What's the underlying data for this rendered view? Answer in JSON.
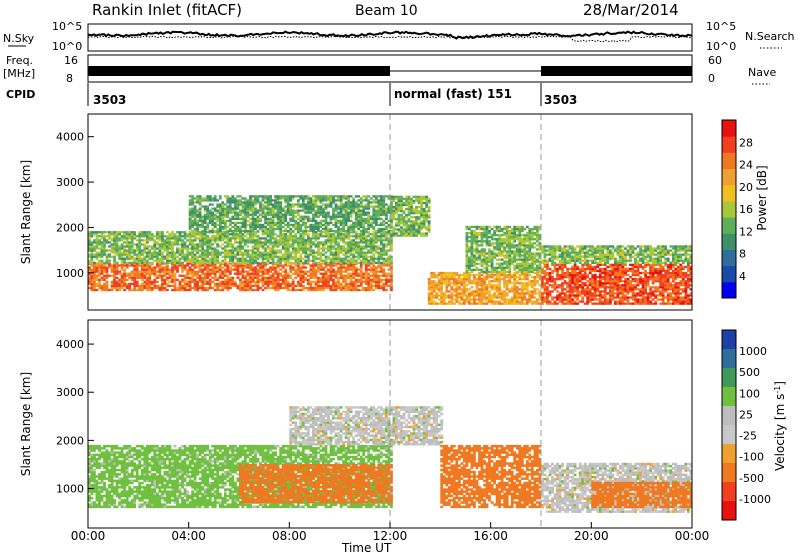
{
  "header": {
    "station": "Rankin Inlet (fitACF)",
    "beam": "Beam 10",
    "date": "28/Mar/2014"
  },
  "noise_panel": {
    "left_label": "N.Sky",
    "left_ticks": [
      "10^5",
      "10^0"
    ],
    "right_label": "N.Search",
    "right_ticks": [
      "10^5",
      "10^0"
    ]
  },
  "freq_panel": {
    "left_label_line1": "Freq.",
    "left_label_line2": "[MHz]",
    "left_ticks": [
      "16",
      "8"
    ],
    "right_label": "Nave",
    "right_ticks": [
      "60",
      "0"
    ]
  },
  "cpid_panel": {
    "label": "CPID",
    "segments": [
      {
        "start_hour": 0,
        "text": "3503"
      },
      {
        "start_hour": 12,
        "text": "normal (fast) 151"
      },
      {
        "start_hour": 18,
        "text": "3503"
      }
    ]
  },
  "colors": {
    "power_scale": [
      "#0000ee",
      "#1a4aa8",
      "#2f6e9a",
      "#3f8f6a",
      "#5fae5a",
      "#a8c83a",
      "#f0c020",
      "#f0a030",
      "#f07820",
      "#f04020",
      "#e81010"
    ],
    "velocity_scale": [
      "#1e3ea8",
      "#2f6e9a",
      "#3f9a5a",
      "#70c040",
      "#bdbdbd",
      "#c8c8c8",
      "#f0a030",
      "#f07820",
      "#f04020",
      "#e81010"
    ]
  },
  "chart_data": [
    {
      "type": "heatmap",
      "quantity": "Power",
      "xlabel": "",
      "ylabel": "Slant Range [km]",
      "xlim": [
        0,
        24
      ],
      "ylim": [
        180,
        4500
      ],
      "y_ticks": [
        "1000",
        "2000",
        "3000",
        "4000"
      ],
      "colorbar_label": "Power [dB]",
      "colorbar_range": [
        0,
        32
      ],
      "colorbar_ticks": [
        "4",
        "8",
        "12",
        "16",
        "20",
        "24",
        "28"
      ],
      "features": [
        {
          "t0": 0,
          "t1": 12,
          "r0": 600,
          "r1": 1200,
          "power": 26
        },
        {
          "t0": 0,
          "t1": 12,
          "r0": 1200,
          "r1": 1900,
          "power": 14
        },
        {
          "t0": 4,
          "t1": 12,
          "r0": 1900,
          "r1": 2700,
          "power": 12
        },
        {
          "t0": 12,
          "t1": 13.5,
          "r0": 1800,
          "r1": 2700,
          "power": 14
        },
        {
          "t0": 13.5,
          "t1": 18,
          "r0": 300,
          "r1": 1000,
          "power": 22
        },
        {
          "t0": 15,
          "t1": 18,
          "r0": 1000,
          "r1": 2000,
          "power": 14
        },
        {
          "t0": 18,
          "t1": 24,
          "r0": 300,
          "r1": 1200,
          "power": 28
        },
        {
          "t0": 18,
          "t1": 24,
          "r0": 1200,
          "r1": 1600,
          "power": 14
        }
      ]
    },
    {
      "type": "heatmap",
      "quantity": "Velocity",
      "xlabel": "Time UT",
      "ylabel": "Slant Range [km]",
      "xlim": [
        0,
        24
      ],
      "ylim": [
        180,
        4500
      ],
      "x_ticks": [
        "00:00",
        "04:00",
        "08:00",
        "12:00",
        "16:00",
        "20:00",
        "00:00"
      ],
      "y_ticks": [
        "1000",
        "2000",
        "3000",
        "4000"
      ],
      "colorbar_label": "Velocity [m s^-1]",
      "colorbar_ticks": [
        "1000",
        "500",
        "100",
        "25",
        "-25",
        "-100",
        "-500",
        "-1000"
      ],
      "features": [
        {
          "t0": 0,
          "t1": 12,
          "r0": 600,
          "r1": 1900,
          "velocity": 50
        },
        {
          "t0": 6,
          "t1": 12,
          "r0": 700,
          "r1": 1500,
          "velocity": -200
        },
        {
          "t0": 8,
          "t1": 14,
          "r0": 1900,
          "r1": 2700,
          "velocity": 0
        },
        {
          "t0": 14,
          "t1": 18,
          "r0": 600,
          "r1": 1900,
          "velocity": -300
        },
        {
          "t0": 18,
          "t1": 24,
          "r0": 500,
          "r1": 1500,
          "velocity": 0
        },
        {
          "t0": 20,
          "t1": 24,
          "r0": 600,
          "r1": 1100,
          "velocity": -300
        }
      ]
    }
  ]
}
